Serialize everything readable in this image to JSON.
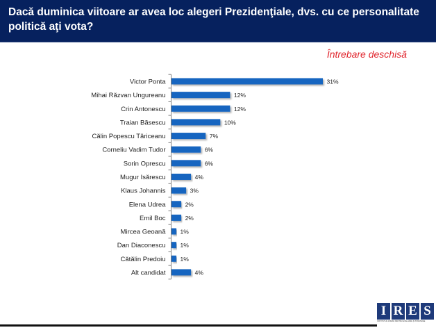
{
  "header": {
    "title": "Dacă duminica viitoare ar avea loc alegeri Prezidenţiale, dvs. cu ce personalitate politică aţi vota?"
  },
  "subtitle": "Întrebare deschisă",
  "logo": {
    "letters": [
      "I",
      "R",
      "E",
      "S"
    ],
    "tagline": "INSTITUTUL ROMÂN PENTRU EVALUARE ŞI STRATEGIE"
  },
  "colors": {
    "header_bg": "#06215e",
    "bar": "#1565c0",
    "subtitle": "#e0242c"
  },
  "chart_data": {
    "type": "bar",
    "orientation": "horizontal",
    "title": "Dacă duminica viitoare ar avea loc alegeri Prezidenţiale, dvs. cu ce personalitate politică aţi vota?",
    "subtitle": "Întrebare deschisă",
    "xlabel": "",
    "ylabel": "",
    "unit": "%",
    "xlim": [
      0,
      31
    ],
    "grid": false,
    "legend": "none",
    "categories": [
      "Victor Ponta",
      "Mihai Răzvan Ungureanu",
      "Crin Antonescu",
      "Traian Băsescu",
      "Călin Popescu Tăriceanu",
      "Corneliu Vadim Tudor",
      "Sorin Oprescu",
      "Mugur Isărescu",
      "Klaus Johannis",
      "Elena Udrea",
      "Emil Boc",
      "Mircea Geoană",
      "Dan Diaconescu",
      "Cătălin Predoiu",
      "Alt candidat"
    ],
    "values": [
      31,
      12,
      12,
      10,
      7,
      6,
      6,
      4,
      3,
      2,
      2,
      1,
      1,
      1,
      4
    ],
    "value_labels": [
      "31%",
      "12%",
      "12%",
      "10%",
      "7%",
      "6%",
      "6%",
      "4%",
      "3%",
      "2%",
      "2%",
      "1%",
      "1%",
      "1%",
      "4%"
    ]
  }
}
